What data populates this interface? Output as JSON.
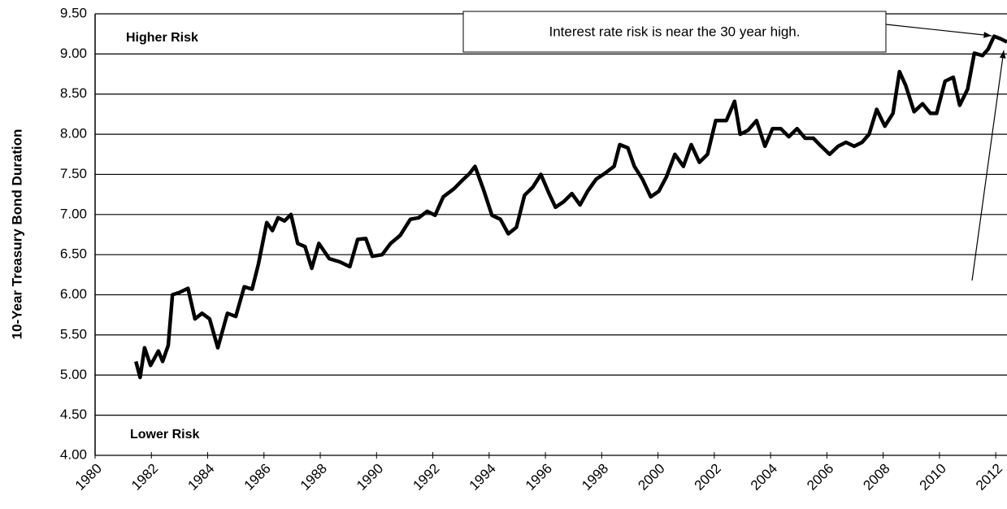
{
  "chart_data": {
    "type": "line",
    "y_label": "10-Year Treasury Bond Duration",
    "annotations": [
      "Higher Risk",
      "Lower Risk",
      "Interest rate risk is near the 30 year high."
    ],
    "color": "#000000",
    "grid": true,
    "xlim": [
      1980,
      2012.4
    ],
    "xticks": [
      1980,
      1982,
      1984,
      1986,
      1988,
      1990,
      1992,
      1994,
      1996,
      1998,
      2000,
      2002,
      2004,
      2006,
      2008,
      2010,
      2012
    ],
    "ylim": [
      4.0,
      9.5
    ],
    "yticks": [
      {
        "value": 4.0,
        "label": "4.00"
      },
      {
        "value": 4.5,
        "label": "4.50"
      },
      {
        "value": 5.0,
        "label": "5.00"
      },
      {
        "value": 5.5,
        "label": "5.50"
      },
      {
        "value": 6.0,
        "label": "6.00"
      },
      {
        "value": 6.5,
        "label": "6.50"
      },
      {
        "value": 7.0,
        "label": "7.00"
      },
      {
        "value": 7.5,
        "label": "7.50"
      },
      {
        "value": 8.0,
        "label": "8.00"
      },
      {
        "value": 8.5,
        "label": "8.50"
      },
      {
        "value": 9.0,
        "label": "9.00"
      },
      {
        "value": 9.5,
        "label": "9.50"
      }
    ],
    "x": [
      1981.45,
      1981.6,
      1981.76,
      1981.97,
      1982.25,
      1982.4,
      1982.6,
      1982.75,
      1983.0,
      1983.3,
      1983.55,
      1983.8,
      1984.07,
      1984.36,
      1984.7,
      1985.0,
      1985.3,
      1985.58,
      1985.8,
      1986.1,
      1986.3,
      1986.5,
      1986.73,
      1986.96,
      1987.2,
      1987.46,
      1987.7,
      1987.95,
      1988.32,
      1988.7,
      1989.05,
      1989.33,
      1989.62,
      1989.85,
      1990.2,
      1990.5,
      1990.84,
      1991.2,
      1991.5,
      1991.8,
      1992.08,
      1992.37,
      1992.75,
      1993.03,
      1993.3,
      1993.5,
      1993.8,
      1994.1,
      1994.4,
      1994.68,
      1994.97,
      1995.26,
      1995.55,
      1995.84,
      1996.13,
      1996.36,
      1996.65,
      1996.94,
      1997.23,
      1997.5,
      1997.8,
      1998.1,
      1998.44,
      1998.64,
      1998.93,
      1999.16,
      1999.45,
      1999.74,
      2000.03,
      2000.3,
      2000.6,
      2000.9,
      2001.18,
      2001.47,
      2001.76,
      2002.05,
      2002.43,
      2002.72,
      2002.92,
      2003.2,
      2003.5,
      2003.8,
      2004.07,
      2004.36,
      2004.65,
      2004.94,
      2005.23,
      2005.52,
      2005.8,
      2006.1,
      2006.4,
      2006.68,
      2006.97,
      2007.25,
      2007.5,
      2007.77,
      2008.06,
      2008.35,
      2008.58,
      2008.8,
      2009.1,
      2009.4,
      2009.68,
      2009.9,
      2010.2,
      2010.49,
      2010.72,
      2011.0,
      2011.24,
      2011.53,
      2011.73,
      2011.94,
      2012.17,
      2012.4
    ],
    "values": [
      5.17,
      4.97,
      5.34,
      5.12,
      5.3,
      5.17,
      5.37,
      6.0,
      6.03,
      6.08,
      5.7,
      5.77,
      5.7,
      5.34,
      5.77,
      5.73,
      6.1,
      6.07,
      6.38,
      6.9,
      6.8,
      6.96,
      6.92,
      7.0,
      6.64,
      6.6,
      6.33,
      6.64,
      6.45,
      6.41,
      6.35,
      6.69,
      6.7,
      6.48,
      6.5,
      6.64,
      6.74,
      6.94,
      6.96,
      7.04,
      6.99,
      7.22,
      7.32,
      7.42,
      7.51,
      7.6,
      7.31,
      6.99,
      6.94,
      6.76,
      6.84,
      7.24,
      7.34,
      7.5,
      7.26,
      7.09,
      7.16,
      7.26,
      7.12,
      7.29,
      7.44,
      7.51,
      7.6,
      7.87,
      7.83,
      7.6,
      7.44,
      7.22,
      7.29,
      7.47,
      7.75,
      7.6,
      7.87,
      7.65,
      7.75,
      8.17,
      8.17,
      8.41,
      8.0,
      8.05,
      8.17,
      7.85,
      8.07,
      8.07,
      7.97,
      8.07,
      7.95,
      7.95,
      7.85,
      7.75,
      7.85,
      7.9,
      7.85,
      7.9,
      8.0,
      8.31,
      8.1,
      8.26,
      8.78,
      8.61,
      8.28,
      8.38,
      8.26,
      8.26,
      8.66,
      8.71,
      8.36,
      8.56,
      9.01,
      8.98,
      9.06,
      9.22,
      9.19,
      9.15
    ]
  }
}
